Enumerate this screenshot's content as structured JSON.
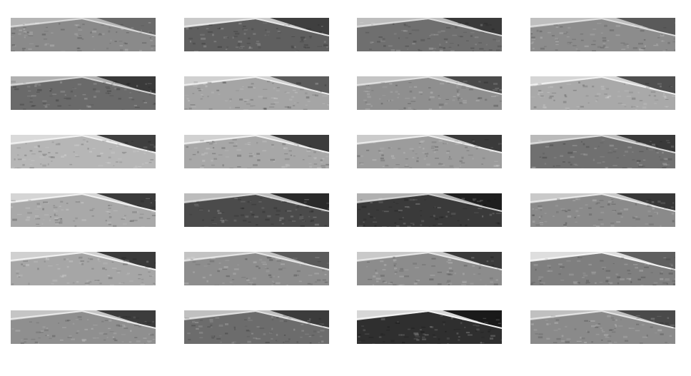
{
  "figure": {
    "rows": 6,
    "cols": 4
  },
  "tiles": [
    {
      "row": 1,
      "col": 1,
      "road": "#8a8a8a",
      "sky": "#b5b5b5",
      "shade": "#6a6a6a",
      "edge": "#d9d9d9"
    },
    {
      "row": 1,
      "col": 2,
      "road": "#5f5f5f",
      "sky": "#c9c9c9",
      "shade": "#3f3f3f",
      "edge": "#e6e6e6"
    },
    {
      "row": 1,
      "col": 3,
      "road": "#6f6f6f",
      "sky": "#bdbdbd",
      "shade": "#3a3a3a",
      "edge": "#dadada"
    },
    {
      "row": 1,
      "col": 4,
      "road": "#8c8c8c",
      "sky": "#bfbfbf",
      "shade": "#5a5a5a",
      "edge": "#dddddd"
    },
    {
      "row": 2,
      "col": 1,
      "road": "#6a6a6a",
      "sky": "#b0b0b0",
      "shade": "#3a3a3a",
      "edge": "#d5d5d5"
    },
    {
      "row": 2,
      "col": 2,
      "road": "#a5a5a5",
      "sky": "#d0d0d0",
      "shade": "#5c5c5c",
      "edge": "#eeeeee"
    },
    {
      "row": 2,
      "col": 3,
      "road": "#8f8f8f",
      "sky": "#c4c4c4",
      "shade": "#4a4a4a",
      "edge": "#e1e1e1"
    },
    {
      "row": 2,
      "col": 4,
      "road": "#a9a9a9",
      "sky": "#d5d5d5",
      "shade": "#4f4f4f",
      "edge": "#f0f0f0"
    },
    {
      "row": 3,
      "col": 1,
      "road": "#b6b6b6",
      "sky": "#dadada",
      "shade": "#3f3f3f",
      "edge": "#f1f1f1"
    },
    {
      "row": 3,
      "col": 2,
      "road": "#a7a7a7",
      "sky": "#d1d1d1",
      "shade": "#3c3c3c",
      "edge": "#efefef"
    },
    {
      "row": 3,
      "col": 3,
      "road": "#9c9c9c",
      "sky": "#cbcbcb",
      "shade": "#3a3a3a",
      "edge": "#ececec"
    },
    {
      "row": 3,
      "col": 4,
      "road": "#707070",
      "sky": "#bababa",
      "shade": "#3a3a3a",
      "edge": "#dcdcdc"
    },
    {
      "row": 4,
      "col": 1,
      "road": "#a9a9a9",
      "sky": "#d5d5d5",
      "shade": "#3b3b3b",
      "edge": "#f1f1f1"
    },
    {
      "row": 4,
      "col": 2,
      "road": "#4b4b4b",
      "sky": "#bcbcbc",
      "shade": "#2a2a2a",
      "edge": "#d8d8d8"
    },
    {
      "row": 4,
      "col": 3,
      "road": "#3a3a3a",
      "sky": "#b0b0b0",
      "shade": "#1f1f1f",
      "edge": "#d0d0d0"
    },
    {
      "row": 4,
      "col": 4,
      "road": "#8a8a8a",
      "sky": "#c9c9c9",
      "shade": "#383838",
      "edge": "#e8e8e8"
    },
    {
      "row": 5,
      "col": 1,
      "road": "#a6a6a6",
      "sky": "#d0d0d0",
      "shade": "#3a3a3a",
      "edge": "#f0f0f0"
    },
    {
      "row": 5,
      "col": 2,
      "road": "#8d8d8d",
      "sky": "#c3c3c3",
      "shade": "#5a5a5a",
      "edge": "#e5e5e5"
    },
    {
      "row": 5,
      "col": 3,
      "road": "#8c8c8c",
      "sky": "#c9c9c9",
      "shade": "#3a3a3a",
      "edge": "#e7e7e7"
    },
    {
      "row": 5,
      "col": 4,
      "road": "#7f7f7f",
      "sky": "#dedede",
      "shade": "#5f5f5f",
      "edge": "#f3f3f3"
    },
    {
      "row": 6,
      "col": 1,
      "road": "#8f8f8f",
      "sky": "#c5c5c5",
      "shade": "#3c3c3c",
      "edge": "#e9e9e9"
    },
    {
      "row": 6,
      "col": 2,
      "road": "#6c6c6c",
      "sky": "#c0c0c0",
      "shade": "#3c3c3c",
      "edge": "#e0e0e0"
    },
    {
      "row": 6,
      "col": 3,
      "road": "#2f2f2f",
      "sky": "#d7d7d7",
      "shade": "#1a1a1a",
      "edge": "#f2f2f2"
    },
    {
      "row": 6,
      "col": 4,
      "road": "#8a8a8a",
      "sky": "#c0c0c0",
      "shade": "#4a4a4a",
      "edge": "#e4e4e4"
    }
  ]
}
